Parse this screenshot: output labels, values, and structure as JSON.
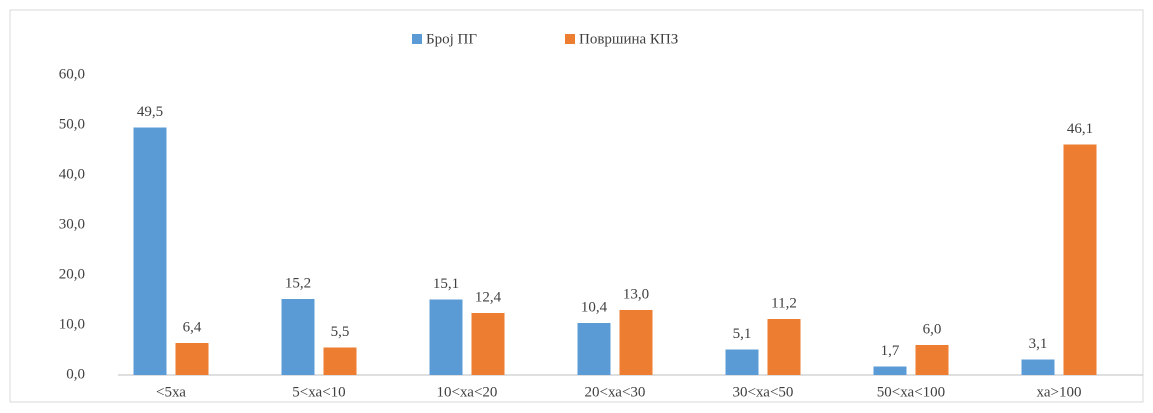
{
  "chart_data": {
    "type": "bar",
    "categories": [
      "<5ха",
      "5<ха<10",
      "10<ха<20",
      "20<ха<30",
      "30<ха<50",
      "50<ха<100",
      "ха>100"
    ],
    "series": [
      {
        "name": "Број ПГ",
        "color": "#5b9bd5",
        "values": [
          49.5,
          15.2,
          15.1,
          10.4,
          5.1,
          1.7,
          3.1
        ],
        "value_labels": [
          "49,5",
          "15,2",
          "15,1",
          "10,4",
          "5,1",
          "1,7",
          "3,1"
        ]
      },
      {
        "name": "Површина КПЗ",
        "color": "#ed7d31",
        "values": [
          6.4,
          5.5,
          12.4,
          13.0,
          11.2,
          6.0,
          46.1
        ],
        "value_labels": [
          "6,4",
          "5,5",
          "12,4",
          "13,0",
          "11,2",
          "6,0",
          "46,1"
        ]
      }
    ],
    "ylim": [
      0,
      60
    ],
    "yticks": [
      {
        "value": 0,
        "label": "0,0"
      },
      {
        "value": 10,
        "label": "10,0"
      },
      {
        "value": 20,
        "label": "20,0"
      },
      {
        "value": 30,
        "label": "30,0"
      },
      {
        "value": 40,
        "label": "40,0"
      },
      {
        "value": 50,
        "label": "50,0"
      },
      {
        "value": 60,
        "label": "60,0"
      }
    ],
    "grid": false,
    "legend": "top"
  }
}
